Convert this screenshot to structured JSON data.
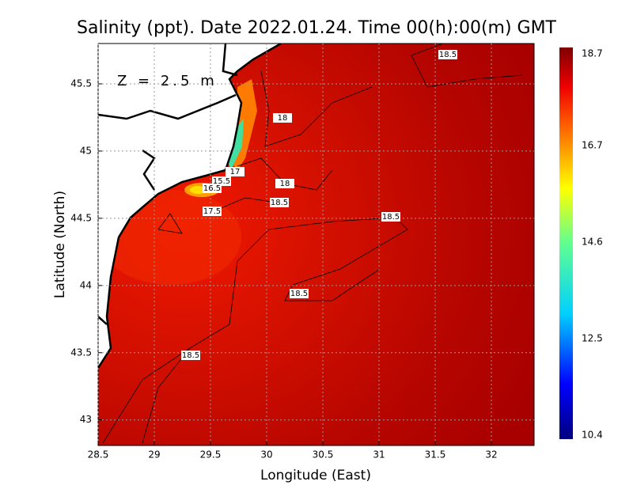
{
  "chart_data": {
    "type": "heatmap",
    "title": "Salinity (ppt). Date 2022.01.24. Time 00(h):00(m) GMT",
    "annotation": "Z = 2.5 m",
    "x_label": "Longitude (East)",
    "y_label": "Latitude (North)",
    "xlim": [
      28.5,
      32.38
    ],
    "ylim": [
      42.81,
      45.8
    ],
    "xticks": [
      28.5,
      29,
      29.5,
      30,
      30.5,
      31,
      31.5,
      32
    ],
    "yticks": [
      43,
      43.5,
      44,
      44.5,
      45,
      45.5
    ],
    "grid": true,
    "clim": [
      10.4,
      18.7
    ],
    "cticks": [
      10.4,
      12.5,
      14.6,
      16.7,
      18.7
    ],
    "contour_labels": [
      "18.5",
      "18",
      "17",
      "15.5",
      "16.5",
      "18",
      "18.5",
      "17.5",
      "18.5",
      "18.5",
      "18.5"
    ]
  }
}
